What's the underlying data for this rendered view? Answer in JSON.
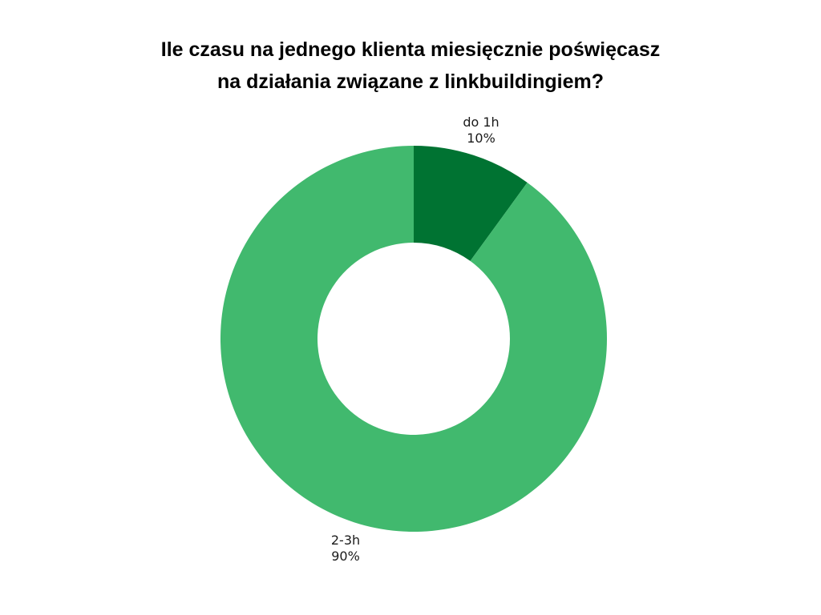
{
  "chart_data": {
    "type": "pie",
    "donut": true,
    "title_lines": [
      "Ile czasu na jednego klienta miesięcznie poświęcasz",
      "na działania związane z linkbuildingiem?"
    ],
    "slices": [
      {
        "label": "do 1h",
        "value": 10,
        "value_label": "10%",
        "color": "#007332"
      },
      {
        "label": "2-3h",
        "value": 90,
        "value_label": "90%",
        "color": "#41b96e"
      }
    ],
    "start_angle_deg": 0,
    "direction": "clockwise",
    "legend": "none"
  }
}
